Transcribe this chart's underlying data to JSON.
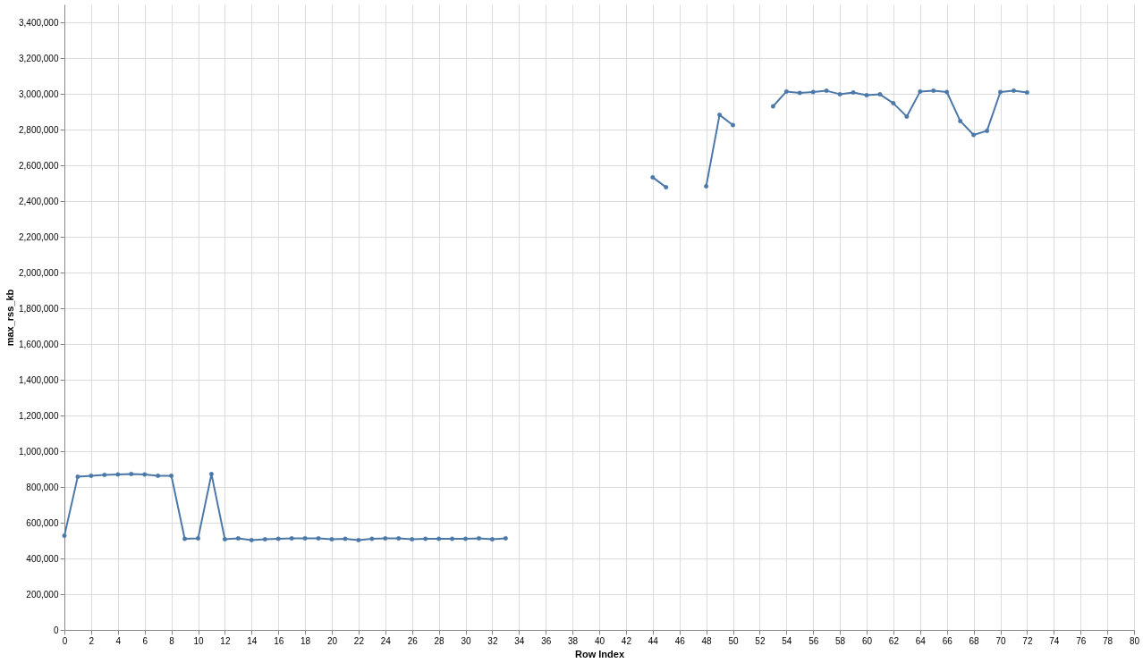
{
  "chart_data": {
    "type": "line",
    "xlabel": "Row Index",
    "ylabel": "max_rss_kb",
    "x": [
      0,
      1,
      2,
      3,
      4,
      5,
      6,
      7,
      8,
      9,
      10,
      11,
      12,
      13,
      14,
      15,
      16,
      17,
      18,
      19,
      20,
      21,
      22,
      23,
      24,
      25,
      26,
      27,
      28,
      29,
      30,
      31,
      32,
      33,
      34,
      35,
      36,
      37,
      38,
      39,
      40,
      41,
      42,
      43,
      44,
      45,
      46,
      47,
      48,
      49,
      50,
      51,
      52,
      53,
      54,
      55,
      56,
      57,
      58,
      59,
      60,
      61,
      62,
      63,
      64,
      65,
      66,
      67,
      68,
      69,
      70,
      71,
      72
    ],
    "values": [
      527000,
      858000,
      863000,
      868000,
      870000,
      873000,
      870000,
      863000,
      863000,
      510000,
      513000,
      872000,
      508000,
      512000,
      503000,
      507000,
      510000,
      512000,
      513000,
      512000,
      507000,
      510000,
      503000,
      510000,
      512000,
      512000,
      507000,
      510000,
      510000,
      510000,
      510000,
      513000,
      507000,
      513000,
      null,
      null,
      null,
      null,
      null,
      null,
      null,
      null,
      null,
      null,
      2533000,
      2477000,
      null,
      null,
      2483000,
      2882000,
      2825000,
      null,
      null,
      2930000,
      3013000,
      3005000,
      3010000,
      3017000,
      2998000,
      3008000,
      2992000,
      2997000,
      2947000,
      2873000,
      3013000,
      3018000,
      3010000,
      2848000,
      2770000,
      2793000,
      3010000,
      3018000,
      3008000
    ],
    "color": "#4c78a8",
    "xlim": [
      0,
      80
    ],
    "xticks": [
      0,
      2,
      4,
      6,
      8,
      10,
      12,
      14,
      16,
      18,
      20,
      22,
      24,
      26,
      28,
      30,
      32,
      34,
      36,
      38,
      40,
      42,
      44,
      46,
      48,
      50,
      52,
      54,
      56,
      58,
      60,
      62,
      64,
      66,
      68,
      70,
      72,
      74,
      76,
      78,
      80
    ],
    "ylim": [
      0,
      3500000
    ],
    "yticks": [
      0,
      {
        "value": 200000,
        "label": "200,000"
      },
      {
        "value": 400000,
        "label": "400,000"
      },
      {
        "value": 600000,
        "label": "600,000"
      },
      {
        "value": 800000,
        "label": "800,000"
      },
      {
        "value": 1000000,
        "label": "1,000,000"
      },
      {
        "value": 1200000,
        "label": "1,200,000"
      },
      {
        "value": 1400000,
        "label": "1,400,000"
      },
      {
        "value": 1600000,
        "label": "1,600,000"
      },
      {
        "value": 1800000,
        "label": "1,800,000"
      },
      {
        "value": 2000000,
        "label": "2,000,000"
      },
      {
        "value": 2200000,
        "label": "2,200,000"
      },
      {
        "value": 2400000,
        "label": "2,400,000"
      },
      {
        "value": 2600000,
        "label": "2,600,000"
      },
      {
        "value": 2800000,
        "label": "2,800,000"
      },
      {
        "value": 3000000,
        "label": "3,000,000"
      },
      {
        "value": 3200000,
        "label": "3,200,000"
      },
      {
        "value": 3400000,
        "label": "3,400,000"
      }
    ],
    "grid": true,
    "marker": "circle",
    "line_style": "solid"
  }
}
